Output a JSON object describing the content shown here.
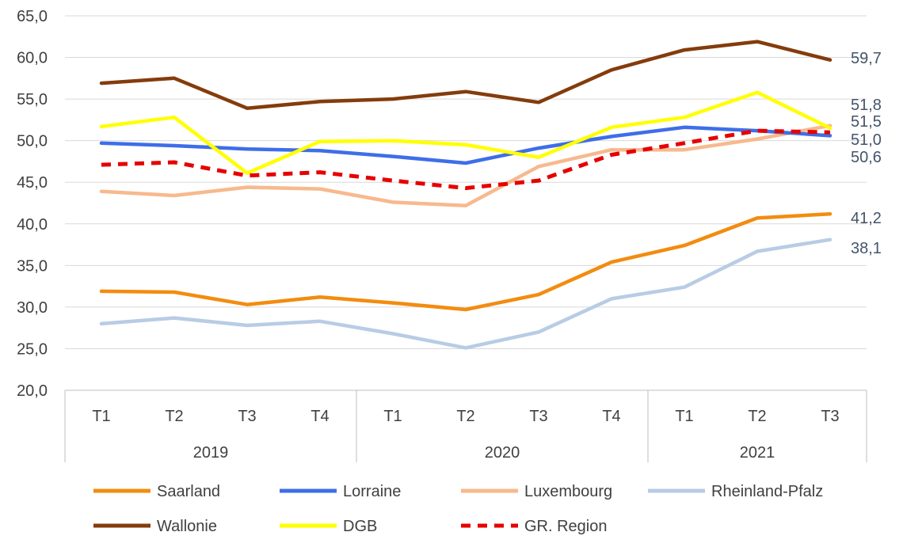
{
  "chart_data": {
    "type": "line",
    "ylim": [
      20,
      65
    ],
    "yticks": [
      "20,0",
      "25,0",
      "30,0",
      "35,0",
      "40,0",
      "45,0",
      "50,0",
      "55,0",
      "60,0",
      "65,0"
    ],
    "grid": "horizontal",
    "legend_position": "bottom",
    "categories": [
      "T1",
      "T2",
      "T3",
      "T4",
      "T1",
      "T2",
      "T3",
      "T4",
      "T1",
      "T2",
      "T3"
    ],
    "groups": [
      {
        "label": "2019",
        "count": 4
      },
      {
        "label": "2020",
        "count": 4
      },
      {
        "label": "2021",
        "count": 3
      }
    ],
    "series": [
      {
        "name": "Saarland",
        "color": "#F28C10",
        "dash": false,
        "values": [
          31.9,
          31.8,
          30.3,
          31.2,
          30.5,
          29.7,
          31.5,
          35.4,
          37.4,
          40.7,
          41.2
        ],
        "end_label": "41,2"
      },
      {
        "name": "Lorraine",
        "color": "#3E6EE8",
        "dash": false,
        "values": [
          49.7,
          49.4,
          49.0,
          48.8,
          48.1,
          47.3,
          49.1,
          50.5,
          51.6,
          51.2,
          50.6
        ],
        "end_label": "50,6"
      },
      {
        "name": "Luxembourg",
        "color": "#F7B98E",
        "dash": false,
        "values": [
          43.9,
          43.4,
          44.4,
          44.2,
          42.6,
          42.2,
          46.9,
          48.9,
          48.9,
          50.2,
          51.8
        ],
        "end_label": "51,8"
      },
      {
        "name": "Rheinland-Pfalz",
        "color": "#B8CCE4",
        "dash": false,
        "values": [
          28.0,
          28.7,
          27.8,
          28.3,
          26.8,
          25.1,
          27.0,
          31.0,
          32.4,
          36.7,
          38.1
        ],
        "end_label": "38,1"
      },
      {
        "name": "Wallonie",
        "color": "#843C0C",
        "dash": false,
        "values": [
          56.9,
          57.5,
          53.9,
          54.7,
          55.0,
          55.9,
          54.6,
          58.5,
          60.9,
          61.9,
          59.7
        ],
        "end_label": "59,7"
      },
      {
        "name": "DGB",
        "color": "#FFFF00",
        "dash": false,
        "values": [
          51.7,
          52.8,
          46.1,
          49.9,
          50.0,
          49.5,
          48.0,
          51.6,
          52.8,
          55.8,
          51.5
        ],
        "end_label": "51,5"
      },
      {
        "name": "GR. Region",
        "color": "#E60000",
        "dash": true,
        "values": [
          47.1,
          47.4,
          45.8,
          46.2,
          45.2,
          44.3,
          45.2,
          48.3,
          49.7,
          51.2,
          51.0
        ],
        "end_label": "51,0"
      }
    ]
  }
}
